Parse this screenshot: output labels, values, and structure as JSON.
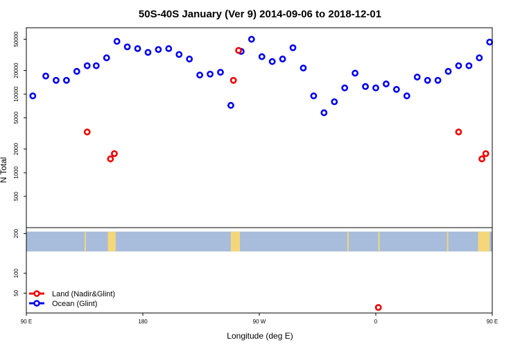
{
  "chart_data": {
    "type": "scatter",
    "title": "50S-40S January (Ver 9)   2014-09-06 to 2018-12-01",
    "xlabel": "Longitude (deg E)",
    "ylabel": "N Total",
    "x_axis": {
      "unit": "degrees of longitude east of 90 E (0 = 90 E, 360 = 90 E wrapped)",
      "range": [
        0,
        360
      ],
      "ticks": [
        {
          "value": 0,
          "label": "90 E"
        },
        {
          "value": 90,
          "label": "180"
        },
        {
          "value": 180,
          "label": "90 W"
        },
        {
          "value": 270,
          "label": "0"
        },
        {
          "value": 360,
          "label": "90 E"
        }
      ]
    },
    "top_panel": {
      "scale": "log",
      "ylim": [
        200,
        70000
      ],
      "yticks": [
        500,
        1000,
        2000,
        5000,
        10000,
        20000,
        50000
      ],
      "series": [
        {
          "name": "Ocean (Glint)",
          "color": "#0000ee",
          "points": [
            [
              5,
              9500
            ],
            [
              15,
              17000
            ],
            [
              23,
              15000
            ],
            [
              31,
              15000
            ],
            [
              39,
              19500
            ],
            [
              47,
              23000
            ],
            [
              54,
              23000
            ],
            [
              62,
              29000
            ],
            [
              70,
              47000
            ],
            [
              78,
              40000
            ],
            [
              86,
              38000
            ],
            [
              94,
              34000
            ],
            [
              102,
              37000
            ],
            [
              110,
              38000
            ],
            [
              118,
              32000
            ],
            [
              126,
              28000
            ],
            [
              134,
              17500
            ],
            [
              142,
              18000
            ],
            [
              150,
              19000
            ],
            [
              158,
              7200
            ],
            [
              166,
              35000
            ],
            [
              174,
              50000
            ],
            [
              182,
              30000
            ],
            [
              190,
              26000
            ],
            [
              198,
              28000
            ],
            [
              206,
              39000
            ],
            [
              214,
              21500
            ],
            [
              222,
              9500
            ],
            [
              230,
              5800
            ],
            [
              238,
              8000
            ],
            [
              246,
              12000
            ],
            [
              254,
              18500
            ],
            [
              262,
              12500
            ],
            [
              270,
              12000
            ],
            [
              278,
              13500
            ],
            [
              286,
              11500
            ],
            [
              294,
              9500
            ],
            [
              302,
              16500
            ],
            [
              310,
              15000
            ],
            [
              318,
              15000
            ],
            [
              326,
              19500
            ],
            [
              334,
              23000
            ],
            [
              342,
              23000
            ],
            [
              350,
              29000
            ],
            [
              358,
              46000
            ]
          ]
        },
        {
          "name": "Land (Nadir&Glint)",
          "color": "#ee0000",
          "points": [
            [
              47,
              3300
            ],
            [
              65,
              1500
            ],
            [
              68,
              1750
            ],
            [
              160,
              15000
            ],
            [
              164,
              36000
            ],
            [
              334,
              3300
            ],
            [
              352,
              1500
            ],
            [
              355,
              1750
            ]
          ]
        }
      ]
    },
    "bottom_panel": {
      "ylim": [
        0,
        215
      ],
      "yticks": [
        50,
        100,
        200
      ],
      "ocean_band": [
        155,
        205
      ],
      "land_patches": [
        {
          "x": [
            45,
            46
          ]
        },
        {
          "x": [
            63,
            69
          ]
        },
        {
          "x": [
            158,
            165
          ]
        },
        {
          "x": [
            248,
            249
          ]
        },
        {
          "x": [
            272,
            273
          ]
        },
        {
          "x": [
            325,
            326
          ]
        },
        {
          "x": [
            349,
            358
          ]
        }
      ],
      "series": [
        {
          "name": "Land (Nadir&Glint)",
          "color": "#ee0000",
          "points": [
            [
              272,
              14
            ]
          ]
        }
      ]
    },
    "legend": {
      "position": "bottom-left",
      "entries": [
        {
          "label": "Land (Nadir&Glint)",
          "color": "#ee0000"
        },
        {
          "label": "Ocean (Glint)",
          "color": "#0000ee"
        }
      ]
    },
    "colors": {
      "ocean_band": "#a8bcdc",
      "land_fill": "#f5d77a",
      "frame": "#000000"
    }
  }
}
